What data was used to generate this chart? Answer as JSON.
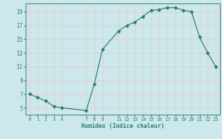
{
  "x": [
    0,
    1,
    2,
    3,
    4,
    7,
    8,
    9,
    11,
    12,
    13,
    14,
    15,
    16,
    17,
    18,
    19,
    20,
    21,
    22,
    23
  ],
  "y": [
    7,
    6.5,
    6,
    5.2,
    5,
    4.6,
    8.5,
    13.5,
    16.2,
    17,
    17.5,
    18.3,
    19.2,
    19.3,
    19.6,
    19.6,
    19.2,
    19,
    15.3,
    13,
    11
  ],
  "xlabel": "Humidex (Indice chaleur)",
  "yticks": [
    5,
    7,
    9,
    11,
    13,
    15,
    17,
    19
  ],
  "xticks": [
    0,
    1,
    2,
    3,
    4,
    7,
    8,
    9,
    11,
    12,
    13,
    14,
    15,
    16,
    17,
    18,
    19,
    20,
    21,
    22,
    23
  ],
  "xlim": [
    -0.5,
    23.5
  ],
  "ylim": [
    4.0,
    20.2
  ],
  "line_color": "#2e7d6e",
  "bg_color": "#cce8ec",
  "grid_color": "#e8c8c8",
  "marker": "D",
  "marker_size": 2.5
}
